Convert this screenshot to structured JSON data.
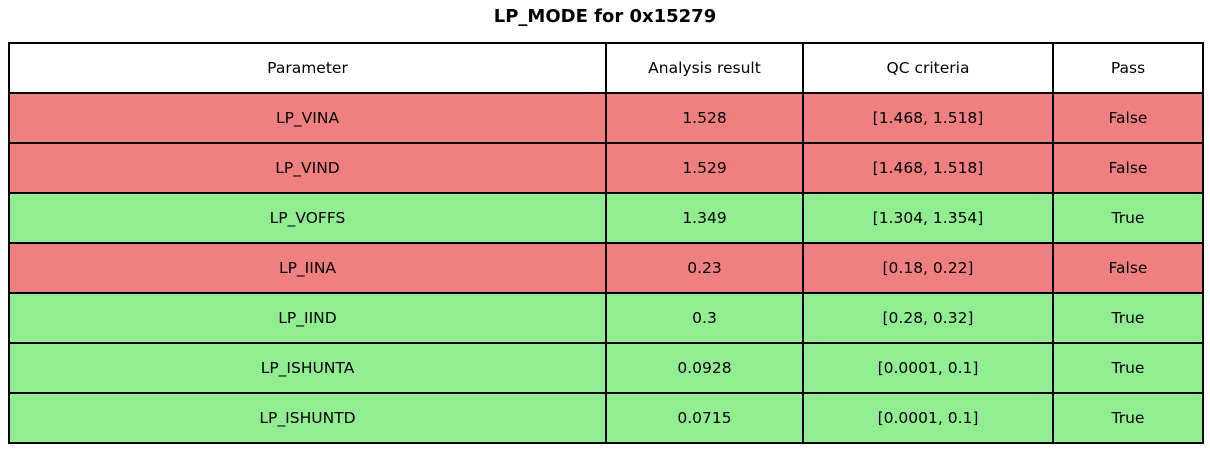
{
  "chart_data": {
    "type": "table",
    "title": "LP_MODE for 0x15279",
    "columns": [
      "Parameter",
      "Analysis result",
      "QC criteria",
      "Pass"
    ],
    "rows": [
      {
        "parameter": "LP_VINA",
        "analysis_result": "1.528",
        "qc_criteria": "[1.468, 1.518]",
        "pass": "False"
      },
      {
        "parameter": "LP_VIND",
        "analysis_result": "1.529",
        "qc_criteria": "[1.468, 1.518]",
        "pass": "False"
      },
      {
        "parameter": "LP_VOFFS",
        "analysis_result": "1.349",
        "qc_criteria": "[1.304, 1.354]",
        "pass": "True"
      },
      {
        "parameter": "LP_IINA",
        "analysis_result": "0.23",
        "qc_criteria": "[0.18, 0.22]",
        "pass": "False"
      },
      {
        "parameter": "LP_IIND",
        "analysis_result": "0.3",
        "qc_criteria": "[0.28, 0.32]",
        "pass": "True"
      },
      {
        "parameter": "LP_ISHUNTA",
        "analysis_result": "0.0928",
        "qc_criteria": "[0.0001, 0.1]",
        "pass": "True"
      },
      {
        "parameter": "LP_ISHUNTD",
        "analysis_result": "0.0715",
        "qc_criteria": "[0.0001, 0.1]",
        "pass": "True"
      }
    ],
    "layout": {
      "header_position": "top",
      "grid": true,
      "row_color_rule": "pass=True -> green, pass=False -> red"
    },
    "colors": {
      "pass_true_bg": "#90ee90",
      "pass_false_bg": "#f08080",
      "header_bg": "#ffffff",
      "border": "#000000",
      "text": "#000000"
    }
  }
}
